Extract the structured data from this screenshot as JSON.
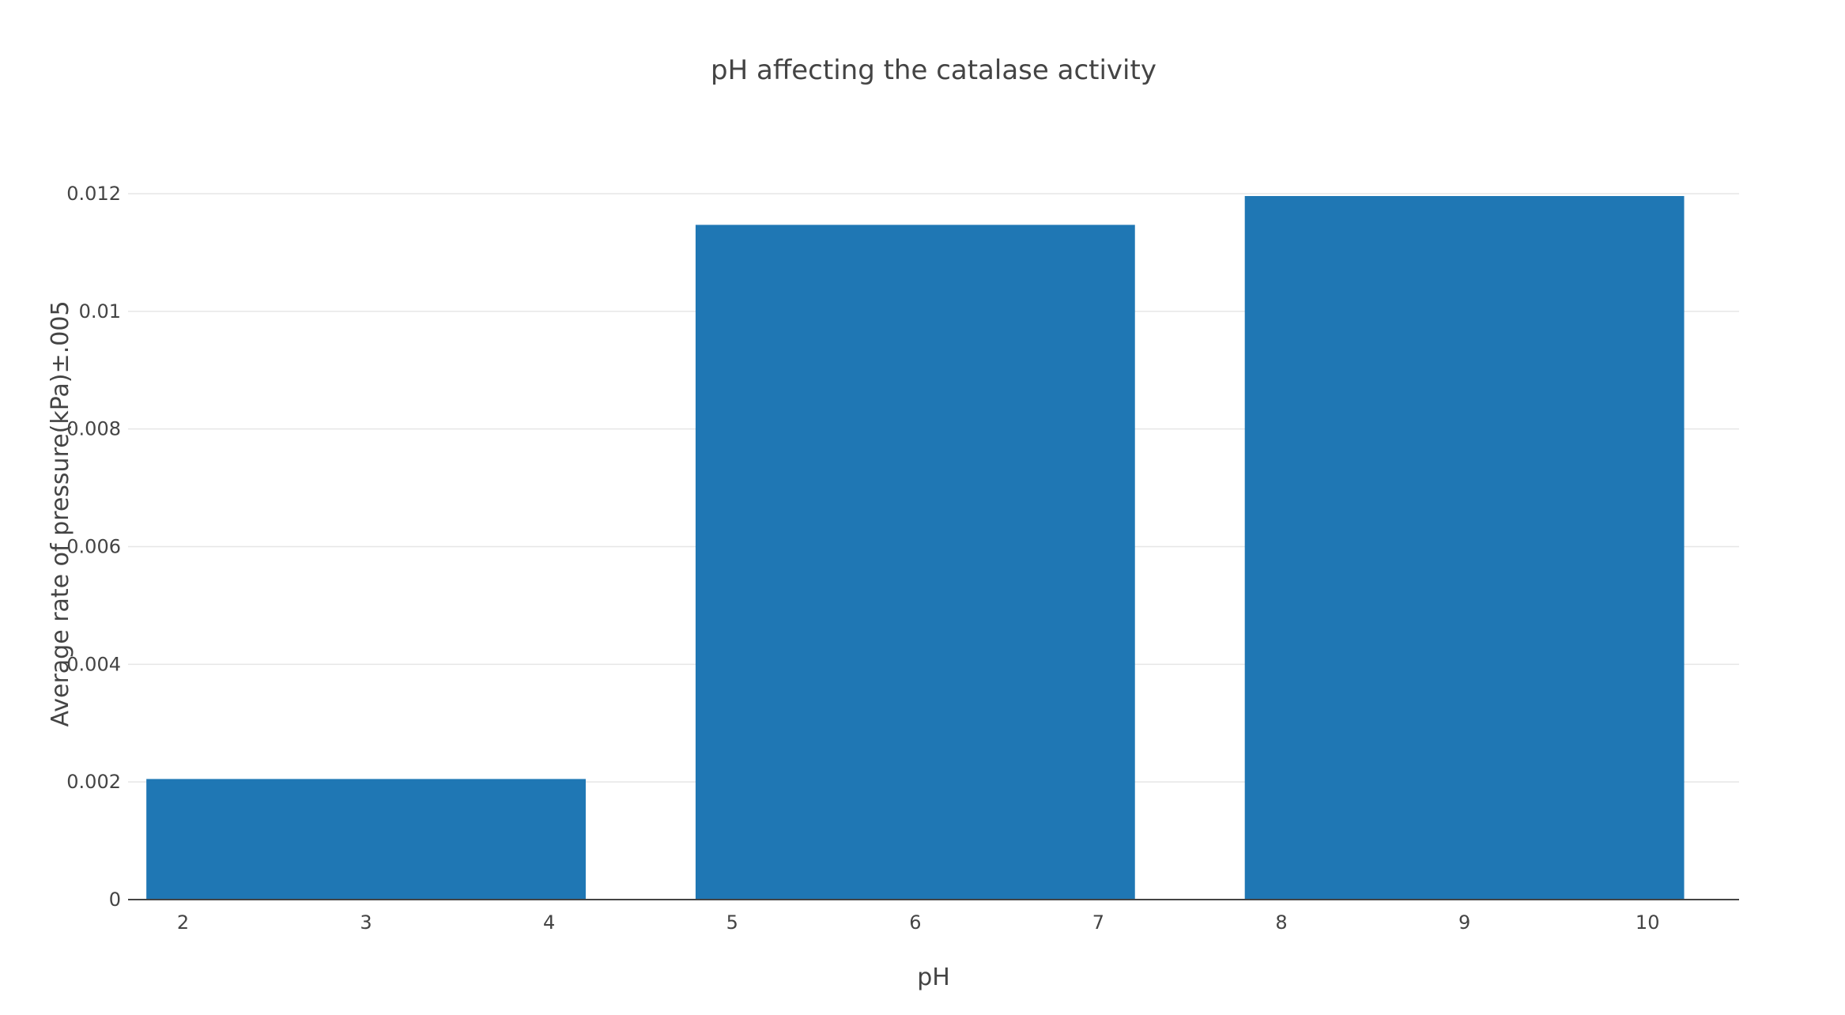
{
  "chart_data": {
    "type": "bar",
    "title": "pH affecting the catalase activity",
    "xlabel": "pH",
    "ylabel": "Average rate of pressure(kPa)±.005",
    "x_range": [
      1.7,
      10.5
    ],
    "ylim": [
      0,
      0.012
    ],
    "x_ticks": [
      2,
      3,
      4,
      5,
      6,
      7,
      8,
      9,
      10
    ],
    "y_ticks": [
      0,
      0.002,
      0.004,
      0.006,
      0.008,
      0.01,
      0.012
    ],
    "y_tick_labels": [
      "0",
      "0.002",
      "0.004",
      "0.006",
      "0.008",
      "0.01",
      "0.012"
    ],
    "bars": [
      {
        "x": 3,
        "width": 2.4,
        "value": 0.00205
      },
      {
        "x": 6,
        "width": 2.4,
        "value": 0.01147
      },
      {
        "x": 9,
        "width": 2.4,
        "value": 0.01196
      }
    ],
    "grid": true,
    "legend": false,
    "bar_color": "#1f77b4"
  }
}
